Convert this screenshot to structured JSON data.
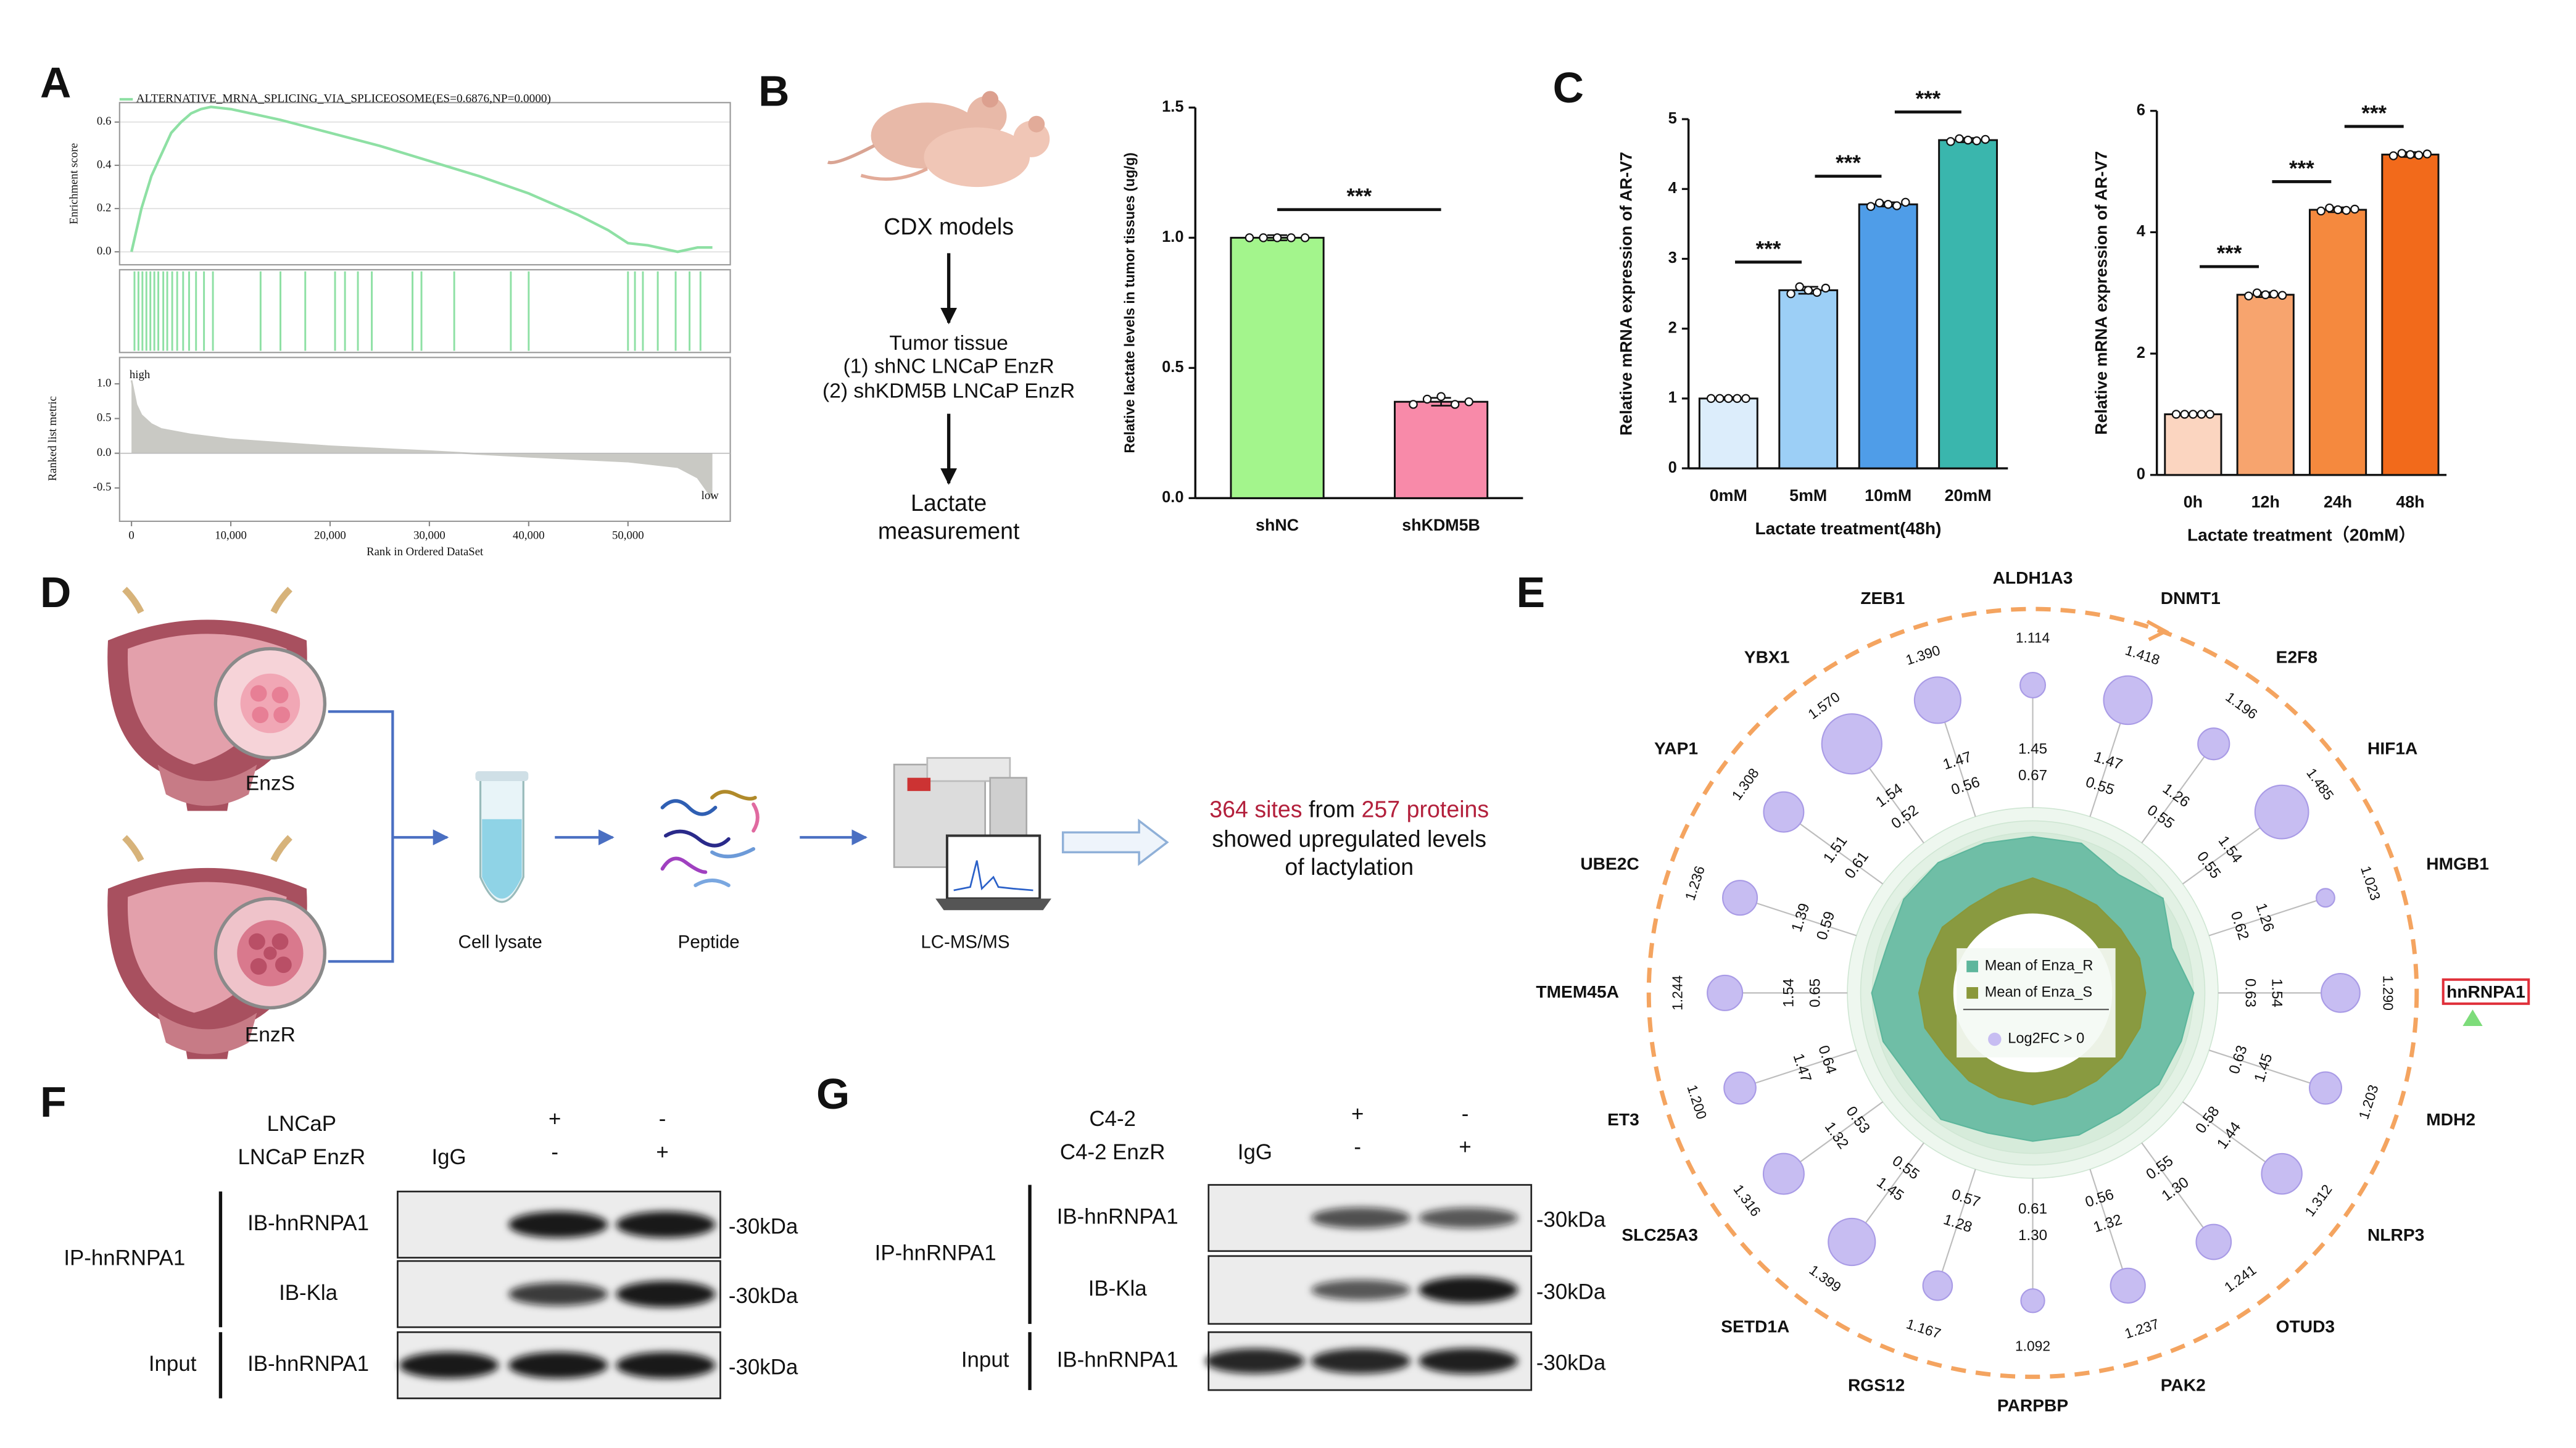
{
  "panel_labels": [
    "A",
    "B",
    "C",
    "D",
    "E",
    "F",
    "G"
  ],
  "chart_data": [
    {
      "type": "gsea",
      "title": "ALTERNATIVE_MRNA_SPLICING_VIA_SPLICEOSOME(ES=0.6876,NP=0.0000)",
      "ylabel": "Enrichment score",
      "metric_label": "Ranked list metric",
      "xlabel": "Rank in Ordered DataSet",
      "annotations": [
        "high",
        "low"
      ],
      "color": "#8ee0a4",
      "metric_color": "#c9c9c4",
      "grid": true,
      "x": [
        0,
        1000,
        2000,
        3000,
        4000,
        5000,
        6000,
        7000,
        8000,
        10000,
        15000,
        20000,
        25000,
        30000,
        35000,
        40000,
        45000,
        48000,
        50000,
        52000,
        55000,
        57000,
        58500
      ],
      "values": [
        0,
        0.2,
        0.35,
        0.45,
        0.55,
        0.6,
        0.64,
        0.66,
        0.67,
        0.66,
        0.61,
        0.55,
        0.49,
        0.42,
        0.35,
        0.27,
        0.17,
        0.1,
        0.04,
        0.03,
        0.0,
        0.02,
        0.02
      ],
      "hits": [
        300,
        700,
        1100,
        1500,
        1900,
        2300,
        2700,
        3200,
        3600,
        4100,
        4600,
        5200,
        5800,
        6500,
        7300,
        8200,
        13000,
        15000,
        17500,
        20500,
        21500,
        22800,
        24200,
        28300,
        29200,
        32500,
        38200,
        40000,
        50000,
        50700,
        51500,
        53000,
        54800,
        56200,
        57300
      ],
      "metric_x": [
        0,
        500,
        1000,
        2000,
        3000,
        6000,
        10000,
        20000,
        30000,
        40000,
        50000,
        55000,
        57000,
        58500
      ],
      "metric": [
        1.05,
        0.7,
        0.55,
        0.42,
        0.35,
        0.27,
        0.2,
        0.1,
        0.03,
        -0.05,
        -0.12,
        -0.2,
        -0.35,
        -0.65
      ],
      "xlim": [
        -1200,
        60300
      ],
      "xticks": [
        0,
        {
          "value": 10000,
          "label": "10,000"
        },
        {
          "value": 20000,
          "label": "20,000"
        },
        {
          "value": 30000,
          "label": "30,000"
        },
        {
          "value": 40000,
          "label": "40,000"
        },
        {
          "value": 50000,
          "label": "50,000"
        }
      ],
      "ylim": [
        -0.06,
        0.69
      ],
      "yticks": [
        {
          "value": 0,
          "label": "0.0"
        },
        0.2,
        0.4,
        0.6
      ],
      "metric_lim": [
        -0.98,
        1.38
      ],
      "metric_ticks": [
        {
          "value": 1,
          "label": "1.0"
        },
        0.5,
        {
          "value": 0,
          "label": "0.0"
        },
        -0.5
      ]
    },
    {
      "type": "bar",
      "ylabel": "Relative lactate levels in tumor tissues (ug/g)",
      "categories": [
        "shNC",
        "shKDM5B"
      ],
      "values": [
        1.0,
        0.37
      ],
      "errors": [
        0.01,
        0.015
      ],
      "points": [
        [
          1.0,
          1.0,
          1.0,
          1.0,
          1.0
        ],
        [
          0.36,
          0.38,
          0.39,
          0.36,
          0.37
        ]
      ],
      "colors": [
        "#a3f58c",
        "#f88aa9"
      ],
      "ylim": [
        0,
        1.5
      ],
      "yticks": [
        {
          "value": 0,
          "label": "0.0"
        },
        0.5,
        {
          "value": 1,
          "label": "1.0"
        },
        1.5
      ],
      "significance": [
        {
          "groups": [
            0,
            1
          ],
          "label": "***"
        }
      ]
    },
    {
      "type": "bar",
      "ylabel": "Relative mRNA expression of AR-V7",
      "xlabel": "Lactate treatment(48h)",
      "categories": [
        "0mM",
        "5mM",
        "10mM",
        "20mM"
      ],
      "values": [
        1.0,
        2.55,
        3.78,
        4.7
      ],
      "errors": [
        0.02,
        0.05,
        0.03,
        0.03
      ],
      "points": [
        [
          1,
          1,
          1,
          1,
          1
        ],
        [
          2.5,
          2.6,
          2.55,
          2.52,
          2.58
        ],
        [
          3.75,
          3.8,
          3.78,
          3.76,
          3.81
        ],
        [
          4.68,
          4.72,
          4.7,
          4.69,
          4.71
        ]
      ],
      "colors": [
        "#dcedfb",
        "#9ccff6",
        "#4f9de8",
        "#3ab6ad"
      ],
      "ylim": [
        0,
        5
      ],
      "yticks": [
        0,
        1,
        2,
        3,
        4,
        5
      ],
      "significance": [
        {
          "groups": [
            0,
            1
          ],
          "label": "***"
        },
        {
          "groups": [
            1,
            2
          ],
          "label": "***"
        },
        {
          "groups": [
            2,
            3
          ],
          "label": "***"
        }
      ]
    },
    {
      "type": "bar",
      "ylabel": "Relative mRNA expression of AR-V7",
      "xlabel": "Lactate treatment（20mM）",
      "categories": [
        "0h",
        "12h",
        "24h",
        "48h"
      ],
      "values": [
        1.0,
        2.97,
        4.37,
        5.28
      ],
      "errors": [
        0.02,
        0.04,
        0.04,
        0.04
      ],
      "points": [
        [
          1,
          1,
          1,
          1,
          1
        ],
        [
          2.95,
          3.0,
          2.97,
          2.98,
          2.96
        ],
        [
          4.35,
          4.4,
          4.37,
          4.36,
          4.38
        ],
        [
          5.26,
          5.3,
          5.28,
          5.27,
          5.29
        ]
      ],
      "colors": [
        "#fbd5c0",
        "#f7a46e",
        "#f5893e",
        "#f26a1b"
      ],
      "ylim": [
        0,
        6
      ],
      "yticks": [
        0,
        2,
        4,
        6
      ],
      "significance": [
        {
          "groups": [
            0,
            1
          ],
          "label": "***"
        },
        {
          "groups": [
            1,
            2
          ],
          "label": "***"
        },
        {
          "groups": [
            2,
            3
          ],
          "label": "***"
        }
      ]
    },
    {
      "type": "radial",
      "categories": [
        "ALDH1A3",
        "DNMT1",
        "E2F8",
        "HIF1A",
        "HMGB1",
        "hnRNPA1",
        "MDH2",
        "NLRP3",
        "OTUD3",
        "PAK2",
        "PARPBP",
        "RGS12",
        "SETD1A",
        "SLC25A3",
        "ET3",
        "TMEM45A",
        "UBE2C",
        "YAP1",
        "YBX1",
        "ZEB1"
      ],
      "values": [
        1.114,
        1.418,
        1.196,
        1.485,
        1.023,
        1.29,
        1.203,
        1.312,
        1.241,
        1.237,
        1.092,
        1.167,
        1.399,
        1.316,
        1.2,
        1.244,
        1.236,
        1.308,
        1.57,
        1.39
      ],
      "value_labels": [
        "1.114",
        "1.418",
        "1.196",
        "1.485",
        "1.023",
        "1.290",
        "1.203",
        "1.312",
        "1.241",
        "1.237",
        "1.092",
        "1.167",
        "1.399",
        "1.316",
        "1.200",
        "1.244",
        "1.236",
        "1.308",
        "1.570",
        "1.390"
      ],
      "bubble_name": "Log2FC > 0",
      "bubble_color": "#c7bdf2",
      "label_color": "#d6528a",
      "ring_color": "#f4a460",
      "highlight": "hnRNPA1",
      "series": [
        {
          "name": "Mean of Enza_R",
          "color": "#5db69c",
          "values": [
            1.45,
            1.47,
            1.26,
            1.54,
            1.26,
            1.54,
            1.45,
            1.44,
            1.3,
            1.32,
            1.3,
            1.28,
            1.45,
            1.32,
            1.47,
            1.54,
            1.39,
            1.51,
            1.54,
            1.47
          ],
          "value_labels": [
            "1.45",
            "1.47",
            "1.26",
            "1.54",
            "1.26",
            "1.54",
            "1.45",
            "1.44",
            "1.30",
            "1.32",
            "1.30",
            "1.28",
            "1.45",
            "1.32",
            "1.47",
            "1.54",
            "1.39",
            "1.51",
            "1.54",
            "1.47"
          ]
        },
        {
          "name": "Mean of Enza_S",
          "color": "#8a983a",
          "values": [
            0.67,
            0.55,
            0.55,
            0.55,
            0.62,
            0.63,
            0.63,
            0.58,
            0.55,
            0.56,
            0.61,
            0.57,
            0.55,
            0.53,
            0.64,
            0.65,
            0.59,
            0.61,
            0.52,
            0.56
          ],
          "value_labels": [
            "0.67",
            "0.55",
            "0.55",
            "0.55",
            "0.62",
            "0.63",
            "0.63",
            "0.58",
            "0.55",
            "0.56",
            "0.61",
            "0.57",
            "0.55",
            "0.53",
            "0.64",
            "0.65",
            "0.59",
            "0.61",
            "0.52",
            "0.56"
          ]
        }
      ]
    }
  ],
  "cdx_workflow": {
    "model": "CDX models",
    "step": "Tumor tissue",
    "groups": [
      "(1) shNC LNCaP EnzR",
      "(2) shKDM5B LNCaP EnzR"
    ],
    "readout": [
      "Lactate",
      "measurement"
    ]
  },
  "workflow_d": {
    "samples": [
      "EnzS",
      "EnzR"
    ],
    "steps": [
      "Cell lysate",
      "Peptide",
      "LC-MS/MS"
    ],
    "result": {
      "line1": [
        "364 sites",
        "from",
        "257 proteins"
      ],
      "line2": "showed upregulated levels",
      "line3": "of lactylation"
    }
  },
  "blot_f": {
    "conditions": [
      {
        "label": "LNCaP",
        "marks": [
          "+",
          "-"
        ]
      },
      {
        "label": "LNCaP EnzR",
        "marks": [
          "-",
          "+"
        ]
      }
    ],
    "control": "IgG",
    "ip": {
      "label": "IP-hnRNPA1",
      "rows": [
        "IB-hnRNPA1",
        "IB-Kla"
      ]
    },
    "input": {
      "label": "Input",
      "row": "IB-hnRNPA1"
    },
    "markers": [
      "-30kDa",
      "-30kDa",
      "-30kDa"
    ]
  },
  "blot_g": {
    "conditions": [
      {
        "label": "C4-2",
        "marks": [
          "+",
          "-"
        ]
      },
      {
        "label": "C4-2 EnzR",
        "marks": [
          "-",
          "+"
        ]
      }
    ],
    "control": "IgG",
    "ip": {
      "label": "IP-hnRNPA1",
      "rows": [
        "IB-hnRNPA1",
        "IB-Kla"
      ]
    },
    "input": {
      "label": "Input",
      "row": "IB-hnRNPA1"
    },
    "markers": [
      "-30kDa",
      "-30kDa",
      "-30kDa"
    ]
  }
}
